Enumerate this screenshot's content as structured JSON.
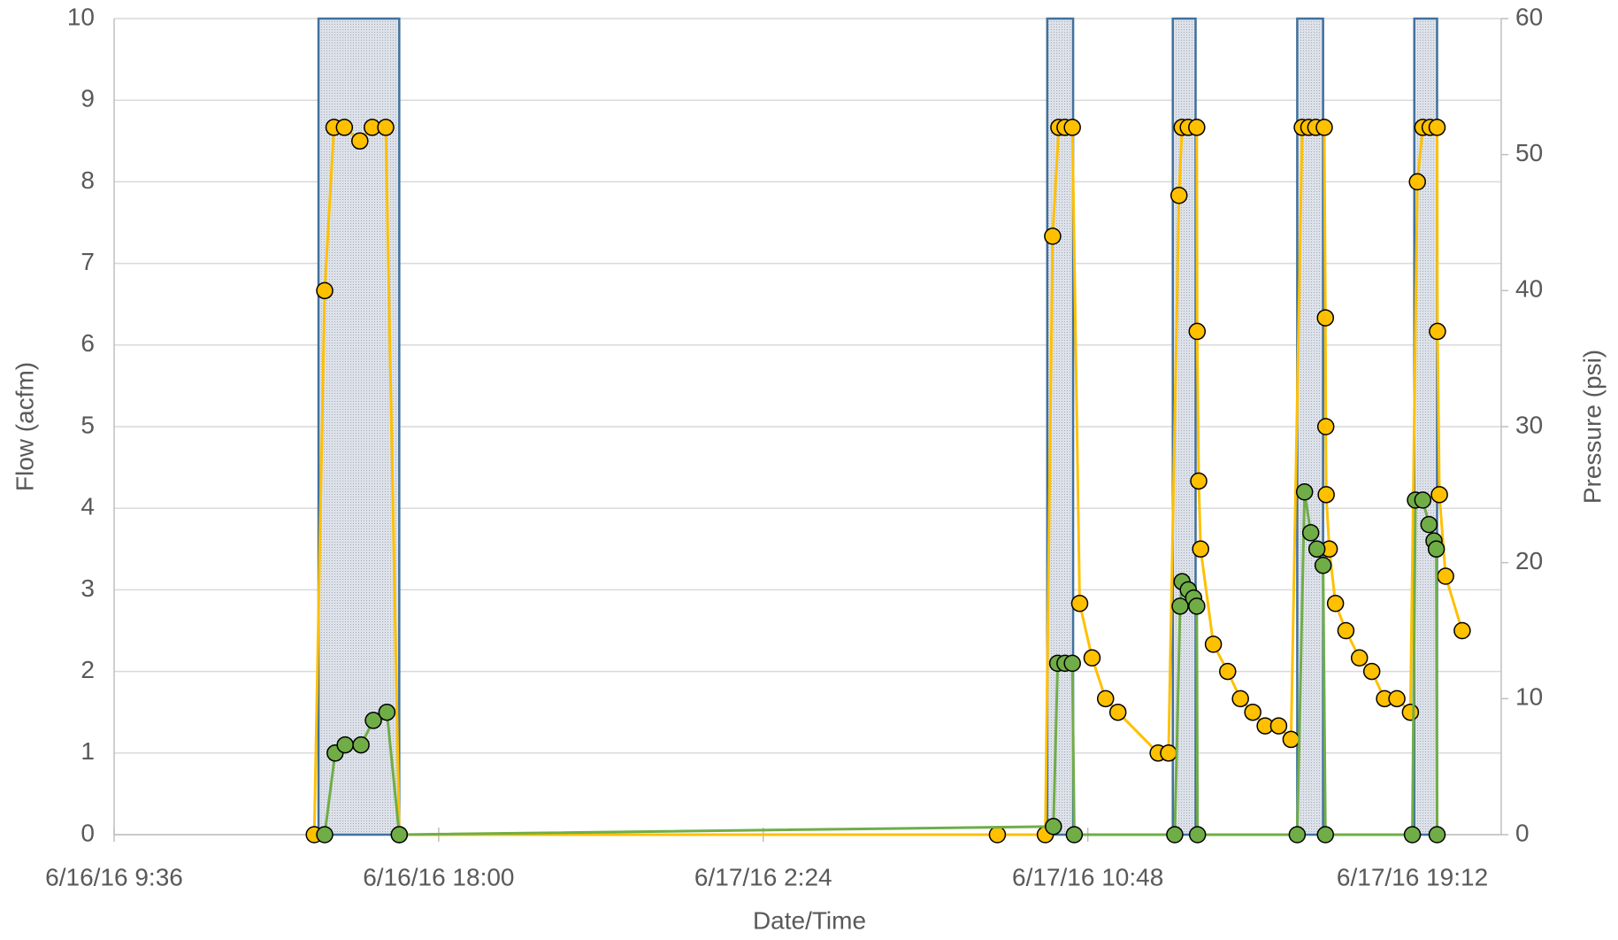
{
  "chart_data": {
    "type": "line",
    "xlabel": "Date/Time",
    "ylabel": "Flow (acfm)",
    "y2label": "Pressure (psi)",
    "xlim": [
      9.6,
      45.5
    ],
    "xticks": [
      {
        "value": 9.6,
        "label": "6/16/16 9:36"
      },
      {
        "value": 18,
        "label": "6/16/16 18:00"
      },
      {
        "value": 26.4,
        "label": "6/17/16 2:24"
      },
      {
        "value": 34.8,
        "label": "6/17/16 10:48"
      },
      {
        "value": 43.2,
        "label": "6/17/16 19:12"
      }
    ],
    "ylim": [
      0,
      10
    ],
    "yticks": [
      0,
      1,
      2,
      3,
      4,
      5,
      6,
      7,
      8,
      9,
      10
    ],
    "y2lim": [
      0,
      60
    ],
    "y2ticks": [
      0,
      10,
      20,
      30,
      40,
      50,
      60
    ],
    "grid": true,
    "shaded_periods": [
      [
        14.89,
        16.98
      ],
      [
        33.75,
        34.42
      ],
      [
        37.0,
        37.59
      ],
      [
        40.22,
        40.89
      ],
      [
        43.25,
        43.84
      ]
    ],
    "shade_color": "#dde2ea",
    "shade_edge_color": "#41719c",
    "series": [
      {
        "color": "#ffc000",
        "axis": "y2",
        "x": [
          14.78,
          15.05,
          15.29,
          15.56,
          15.96,
          16.28,
          16.63,
          16.98,
          32.46,
          33.7,
          33.89,
          34.05,
          34.21,
          34.4,
          34.59,
          34.91,
          35.26,
          35.58,
          36.62,
          36.89,
          37.16,
          37.24,
          37.4,
          37.62,
          37.63,
          37.67,
          37.72,
          38.05,
          38.42,
          38.75,
          39.07,
          39.39,
          39.74,
          40.06,
          40.35,
          40.52,
          40.7,
          40.92,
          40.95,
          40.96,
          40.97,
          41.05,
          41.21,
          41.48,
          41.83,
          42.15,
          42.48,
          42.8,
          43.15,
          43.33,
          43.47,
          43.66,
          43.84,
          43.85,
          43.9,
          44.06,
          44.49
        ],
        "values": [
          0,
          40,
          52,
          52,
          51,
          52,
          52,
          0,
          0,
          0,
          44,
          52,
          52,
          52,
          17,
          13,
          10,
          9,
          6,
          6,
          47,
          52,
          52,
          52,
          37,
          26,
          21,
          14,
          12,
          10,
          9,
          8,
          8,
          7,
          52,
          52,
          52,
          52,
          38,
          30,
          25,
          21,
          17,
          15,
          13,
          12,
          10,
          10,
          9,
          48,
          52,
          52,
          52,
          37,
          25,
          19,
          15
        ]
      },
      {
        "color": "#70ad47",
        "axis": "y",
        "x": [
          15.05,
          15.32,
          15.58,
          15.99,
          16.31,
          16.66,
          16.98,
          33.91,
          34.02,
          34.21,
          34.4,
          34.45,
          37.05,
          37.19,
          37.24,
          37.4,
          37.54,
          37.62,
          37.64,
          40.22,
          40.41,
          40.57,
          40.73,
          40.89,
          40.95,
          43.2,
          43.28,
          43.47,
          43.63,
          43.76,
          43.82,
          43.84
        ],
        "values": [
          0,
          1.0,
          1.1,
          1.1,
          1.4,
          1.5,
          0,
          0.1,
          2.1,
          2.1,
          2.1,
          0,
          0,
          2.8,
          3.1,
          3.0,
          2.9,
          2.8,
          0,
          0,
          4.2,
          3.7,
          3.5,
          3.3,
          0,
          0,
          4.1,
          4.1,
          3.8,
          3.6,
          3.5,
          0
        ]
      }
    ]
  }
}
